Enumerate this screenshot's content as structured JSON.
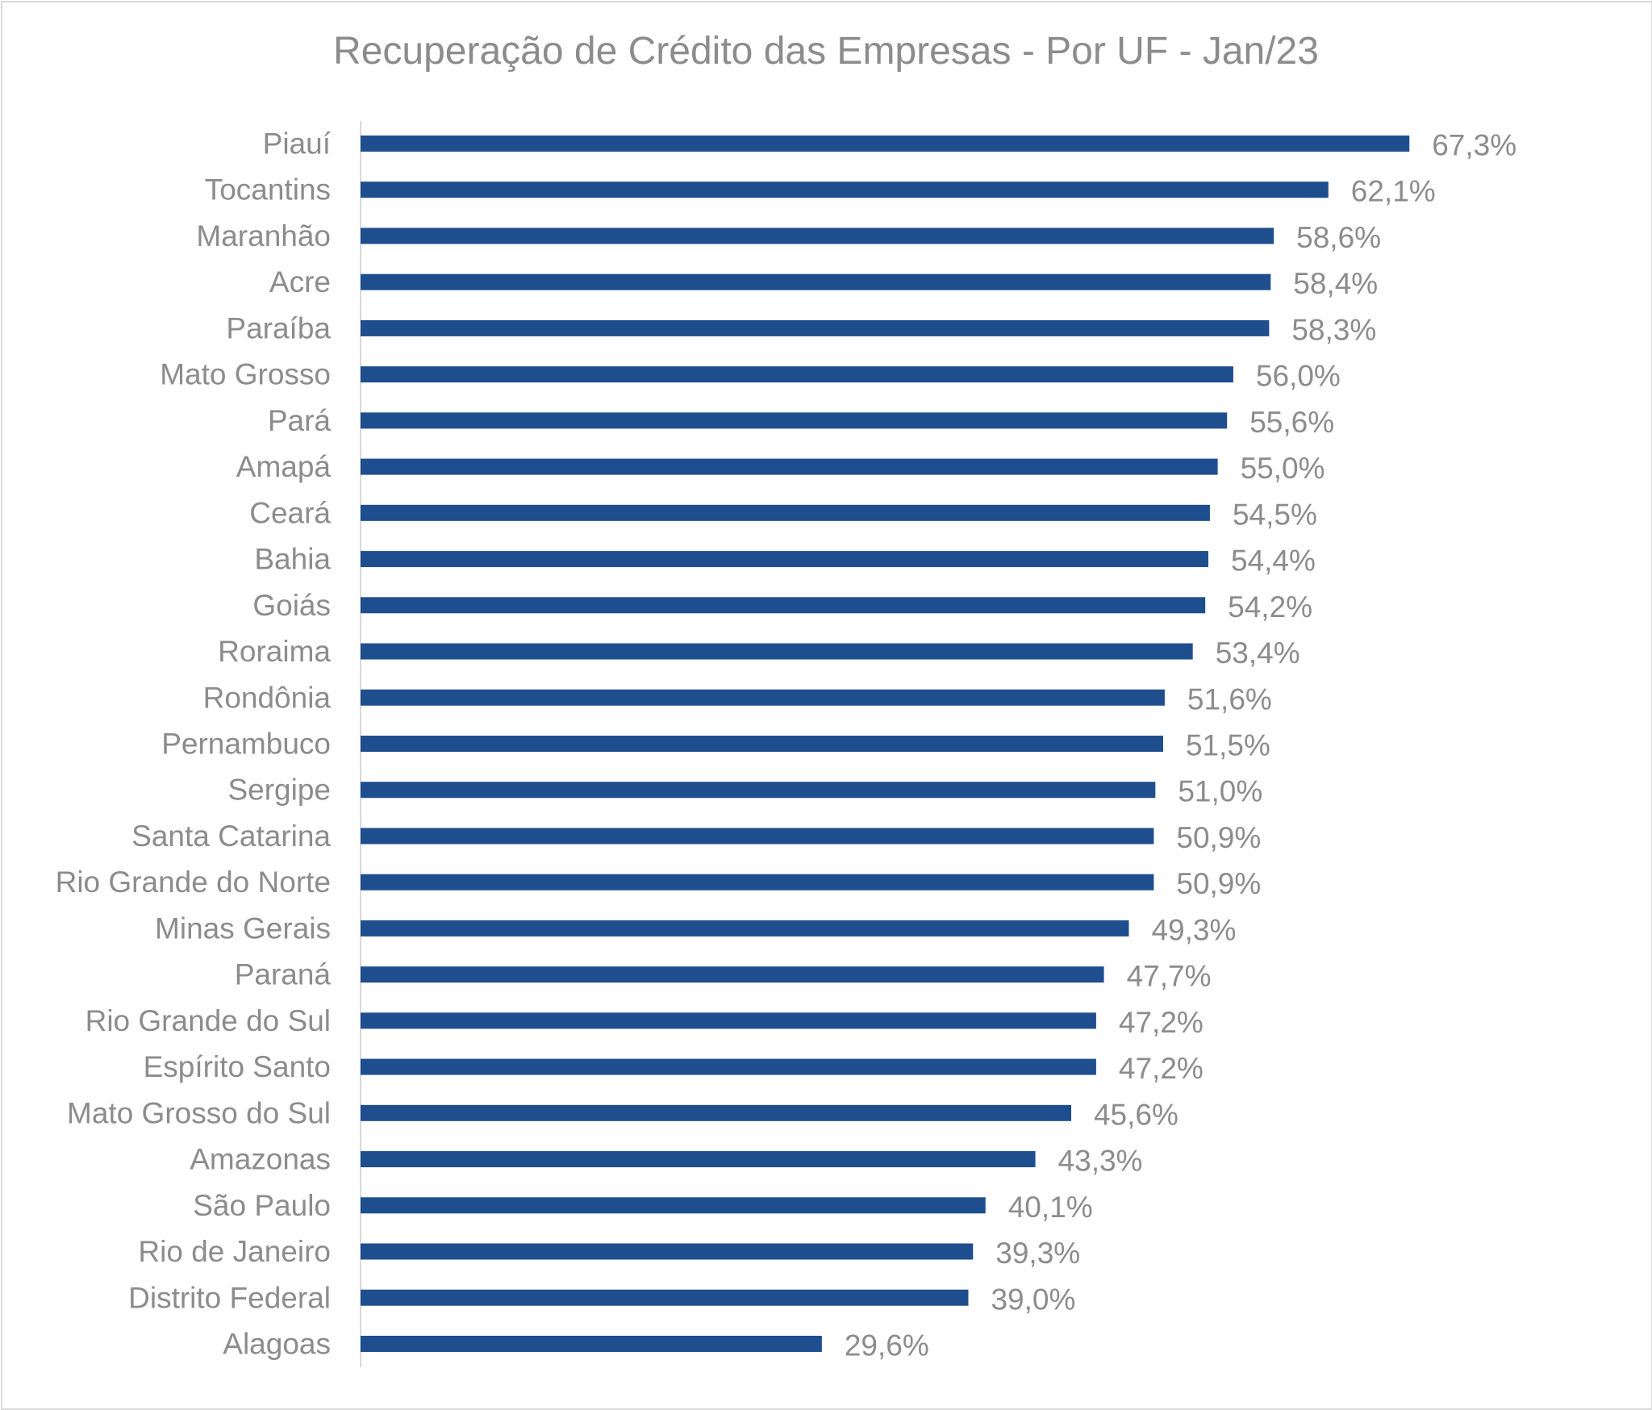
{
  "chart_data": {
    "type": "bar",
    "orientation": "horizontal",
    "title": "Recuperação de Crédito das Empresas - Por UF - Jan/23",
    "xlabel": "",
    "ylabel": "",
    "unit": "%",
    "xlim": [
      0,
      70
    ],
    "grid": false,
    "legend": "none",
    "bar_color": "#1f4e8f",
    "text_color": "#8c8c8c",
    "categories": [
      "Piauí",
      "Tocantins",
      "Maranhão",
      "Acre",
      "Paraíba",
      "Mato Grosso",
      "Pará",
      "Amapá",
      "Ceará",
      "Bahia",
      "Goiás",
      "Roraima",
      "Rondônia",
      "Pernambuco",
      "Sergipe",
      "Santa Catarina",
      "Rio Grande do Norte",
      "Minas Gerais",
      "Paraná",
      "Rio Grande do Sul",
      "Espírito Santo",
      "Mato Grosso do Sul",
      "Amazonas",
      "São Paulo",
      "Rio de Janeiro",
      "Distrito Federal",
      "Alagoas"
    ],
    "values": [
      67.3,
      62.1,
      58.6,
      58.4,
      58.3,
      56.0,
      55.6,
      55.0,
      54.5,
      54.4,
      54.2,
      53.4,
      51.6,
      51.5,
      51.0,
      50.9,
      50.9,
      49.3,
      47.7,
      47.2,
      47.2,
      45.6,
      43.3,
      40.1,
      39.3,
      39.0,
      29.6
    ],
    "data_labels": [
      "67,3%",
      "62,1%",
      "58,6%",
      "58,4%",
      "58,3%",
      "56,0%",
      "55,6%",
      "55,0%",
      "54,5%",
      "54,4%",
      "54,2%",
      "53,4%",
      "51,6%",
      "51,5%",
      "51,0%",
      "50,9%",
      "50,9%",
      "49,3%",
      "47,7%",
      "47,2%",
      "47,2%",
      "45,6%",
      "43,3%",
      "40,1%",
      "39,3%",
      "39,0%",
      "29,6%"
    ]
  }
}
